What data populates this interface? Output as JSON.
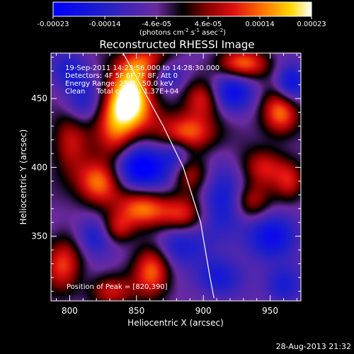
{
  "chart_data": {
    "type": "heatmap",
    "title": "Reconstructed RHESSI Image",
    "xlabel": "Heliocentric X (arcsec)",
    "ylabel": "Heliocentric Y (arcsec)",
    "xlim": [
      786,
      973
    ],
    "ylim": [
      303,
      483
    ],
    "x_ticks": [
      800,
      850,
      900,
      950
    ],
    "y_ticks": [
      350,
      400,
      450
    ],
    "colorbar": {
      "range": [
        -0.00023,
        0.00023
      ],
      "tick_labels": [
        "-0.00023",
        "-0.00014",
        "-4.6e-05",
        "4.6e-05",
        "0.00014",
        "0.00023"
      ],
      "unit_text": "(photons cm",
      "unit_sup1": "-2",
      "unit_mid": " s",
      "unit_sup2": "-1",
      "unit_mid2": " asec",
      "unit_sup3": "-2",
      "unit_end": ")"
    },
    "info_lines": [
      "19-Sep-2011 14:23:56.000 to 14:28:30.000",
      "Detectors: 4F 5F 6F 7F 8F, Att 0",
      "Energy Range: 25.0 - 50.0 keV",
      "Clean     Total counts: 1.37E+04"
    ],
    "peak_text": "Position of Peak = [820,390]",
    "footer_date": "28-Aug-2013 21:32",
    "limb_curve": [
      [
        840,
        483
      ],
      [
        870,
        430
      ],
      [
        885,
        400
      ],
      [
        898,
        360
      ],
      [
        905,
        320
      ],
      [
        908,
        305
      ]
    ],
    "blobs": [
      {
        "x": 840,
        "y": 440,
        "sx": 18,
        "sy": 14,
        "a": 1.0
      },
      {
        "x": 855,
        "y": 475,
        "sx": 15,
        "sy": 10,
        "a": 0.8
      },
      {
        "x": 822,
        "y": 390,
        "sx": 12,
        "sy": 12,
        "a": 1.0
      },
      {
        "x": 835,
        "y": 415,
        "sx": 10,
        "sy": 14,
        "a": 0.55
      },
      {
        "x": 855,
        "y": 370,
        "sx": 14,
        "sy": 10,
        "a": 0.85
      },
      {
        "x": 835,
        "y": 355,
        "sx": 9,
        "sy": 8,
        "a": 0.6
      },
      {
        "x": 862,
        "y": 325,
        "sx": 10,
        "sy": 14,
        "a": 0.85
      },
      {
        "x": 890,
        "y": 425,
        "sx": 15,
        "sy": 10,
        "a": 0.8
      },
      {
        "x": 900,
        "y": 450,
        "sx": 10,
        "sy": 10,
        "a": 0.6
      },
      {
        "x": 890,
        "y": 395,
        "sx": 10,
        "sy": 10,
        "a": 0.55
      },
      {
        "x": 885,
        "y": 365,
        "sx": 12,
        "sy": 10,
        "a": 0.7
      },
      {
        "x": 930,
        "y": 475,
        "sx": 14,
        "sy": 8,
        "a": 0.8
      },
      {
        "x": 958,
        "y": 440,
        "sx": 10,
        "sy": 12,
        "a": 0.85
      },
      {
        "x": 945,
        "y": 400,
        "sx": 12,
        "sy": 10,
        "a": 0.6
      },
      {
        "x": 935,
        "y": 375,
        "sx": 10,
        "sy": 10,
        "a": 0.65
      },
      {
        "x": 965,
        "y": 390,
        "sx": 8,
        "sy": 10,
        "a": 0.5
      },
      {
        "x": 800,
        "y": 420,
        "sx": 10,
        "sy": 18,
        "a": 0.55
      },
      {
        "x": 795,
        "y": 330,
        "sx": 10,
        "sy": 14,
        "a": 0.7
      },
      {
        "x": 830,
        "y": 310,
        "sx": 12,
        "sy": 8,
        "a": 0.55
      },
      {
        "x": 845,
        "y": 455,
        "sx": 10,
        "sy": 12,
        "a": 0.7
      },
      {
        "x": 850,
        "y": 400,
        "sx": 18,
        "sy": 12,
        "a": -0.95
      },
      {
        "x": 812,
        "y": 445,
        "sx": 12,
        "sy": 12,
        "a": -0.6
      },
      {
        "x": 872,
        "y": 468,
        "sx": 10,
        "sy": 8,
        "a": -0.55
      },
      {
        "x": 920,
        "y": 455,
        "sx": 12,
        "sy": 10,
        "a": -0.65
      },
      {
        "x": 965,
        "y": 460,
        "sx": 8,
        "sy": 10,
        "a": -0.7
      },
      {
        "x": 880,
        "y": 345,
        "sx": 14,
        "sy": 12,
        "a": -0.55
      },
      {
        "x": 915,
        "y": 375,
        "sx": 14,
        "sy": 18,
        "a": -0.55
      },
      {
        "x": 950,
        "y": 350,
        "sx": 14,
        "sy": 12,
        "a": -0.6
      },
      {
        "x": 820,
        "y": 350,
        "sx": 10,
        "sy": 10,
        "a": -0.55
      },
      {
        "x": 910,
        "y": 320,
        "sx": 12,
        "sy": 10,
        "a": -0.5
      },
      {
        "x": 960,
        "y": 315,
        "sx": 10,
        "sy": 10,
        "a": -0.5
      },
      {
        "x": 800,
        "y": 470,
        "sx": 10,
        "sy": 10,
        "a": -0.45
      },
      {
        "x": 880,
        "y": 410,
        "sx": 8,
        "sy": 8,
        "a": -0.4
      }
    ]
  }
}
